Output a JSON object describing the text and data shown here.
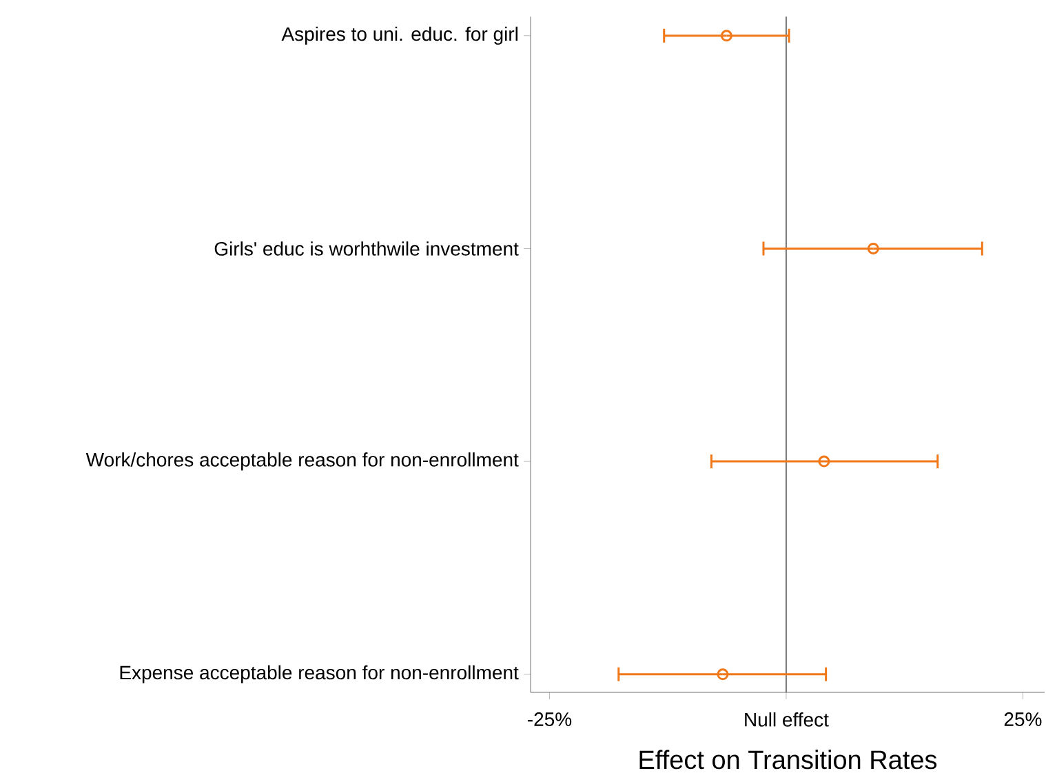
{
  "chart_data": {
    "type": "scatter",
    "orientation": "horizontal",
    "xlabel": "Effect on Transition Rates",
    "categories": [
      "Aspires to uni. educ. for girl",
      "Girls' educ is worhthwile investment",
      "Work/chores acceptable reason for non-enrollment",
      "Expense acceptable reason for non-enrollment"
    ],
    "values": [
      -6.3,
      9.2,
      4.0,
      -6.7
    ],
    "errors": [
      [
        -12.9,
        0.3
      ],
      [
        -2.4,
        20.7
      ],
      [
        -7.9,
        16.0
      ],
      [
        -17.7,
        4.2
      ]
    ],
    "color": "#f07818",
    "marker": "circle",
    "xlim": [
      -27,
      27.3
    ],
    "xticks": [
      {
        "value": -25,
        "label": "-25%"
      },
      {
        "value": 0,
        "label": "Null effect"
      },
      {
        "value": 25,
        "label": "25%"
      }
    ],
    "ref_lines": [
      {
        "axis": "x",
        "value": 0,
        "color": "#555555"
      }
    ],
    "grid": false
  }
}
